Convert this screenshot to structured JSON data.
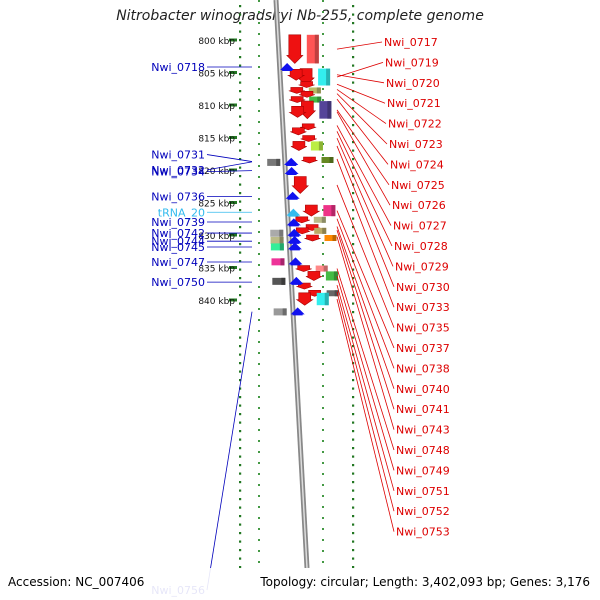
{
  "title": "Nitrobacter winogradskyi Nb-255, complete genome",
  "footer": {
    "accession": "Accession: NC_007406",
    "summary": "Topology: circular; Length: 3,402,093 bp; Genes: 3,176"
  },
  "colors": {
    "forward_label": "#dd0000",
    "reverse_label": "#0000bb",
    "trna_label": "#33bbee",
    "tick": "#227722",
    "backbone": "#999999"
  },
  "ruler": {
    "unit": "kbp",
    "ticks": [
      {
        "label": "800 kbp",
        "kbp": 800
      },
      {
        "label": "805 kbp",
        "kbp": 805
      },
      {
        "label": "810 kbp",
        "kbp": 810
      },
      {
        "label": "815 kbp",
        "kbp": 815
      },
      {
        "label": "820 kbp",
        "kbp": 820
      },
      {
        "label": "825 kbp",
        "kbp": 825
      },
      {
        "label": "830 kbp",
        "kbp": 830
      },
      {
        "label": "835 kbp",
        "kbp": 835
      },
      {
        "label": "840 kbp",
        "kbp": 840
      }
    ]
  },
  "forward_genes": [
    {
      "name": "Nwi_0717",
      "start_kbp": 799.2,
      "end_kbp": 803.6,
      "marker_color": "#ff5555"
    },
    {
      "name": "Nwi_0719",
      "start_kbp": 804.4,
      "end_kbp": 807.0,
      "marker_color": "#33eeee"
    },
    {
      "name": "Nwi_0720",
      "start_kbp": 804.5,
      "end_kbp": 806.2,
      "marker_color": "#ff3333"
    },
    {
      "name": "Nwi_0721",
      "start_kbp": 806.4,
      "end_kbp": 807.2,
      "marker_color": "#ff3333"
    },
    {
      "name": "Nwi_0722",
      "start_kbp": 807.3,
      "end_kbp": 807.9,
      "marker_color": "#bbbb66"
    },
    {
      "name": "Nwi_0723",
      "start_kbp": 807.9,
      "end_kbp": 808.6,
      "marker_color": "#ff3333"
    },
    {
      "name": "Nwi_0724",
      "start_kbp": 808.7,
      "end_kbp": 809.5,
      "marker_color": "#44bb44"
    },
    {
      "name": "Nwi_0725",
      "start_kbp": 809.4,
      "end_kbp": 812.1,
      "marker_color": "#554499"
    },
    {
      "name": "Nwi_0726",
      "start_kbp": 810.2,
      "end_kbp": 811.9,
      "marker_color": "#ff3333"
    },
    {
      "name": "Nwi_0727",
      "start_kbp": 812.9,
      "end_kbp": 813.4,
      "marker_color": "#ff3333"
    },
    {
      "name": "Nwi_0728",
      "start_kbp": 813.5,
      "end_kbp": 814.6,
      "marker_color": "#ff3333"
    },
    {
      "name": "Nwi_0729",
      "start_kbp": 814.7,
      "end_kbp": 815.5,
      "marker_color": "#ff3333"
    },
    {
      "name": "Nwi_0730",
      "start_kbp": 815.6,
      "end_kbp": 817.0,
      "marker_color": "#bbee44"
    },
    {
      "name": "Nwi_0733",
      "start_kbp": 818.0,
      "end_kbp": 818.6,
      "marker_color": "#668822"
    },
    {
      "name": "Nwi_0735",
      "start_kbp": 821.0,
      "end_kbp": 823.6,
      "marker_color": "#ff3333"
    },
    {
      "name": "Nwi_0737",
      "start_kbp": 825.4,
      "end_kbp": 827.1,
      "marker_color": "#ee3388"
    },
    {
      "name": "Nwi_0738",
      "start_kbp": 827.2,
      "end_kbp": 827.8,
      "marker_color": "#bbbb88"
    },
    {
      "name": "Nwi_0740",
      "start_kbp": 828.4,
      "end_kbp": 829.0,
      "marker_color": "#ff3333"
    },
    {
      "name": "Nwi_0741",
      "start_kbp": 828.9,
      "end_kbp": 829.6,
      "marker_color": "#bbaa66"
    },
    {
      "name": "Nwi_0743",
      "start_kbp": 830.0,
      "end_kbp": 830.5,
      "marker_color": "#ff8800"
    },
    {
      "name": "Nwi_0748",
      "start_kbp": 834.7,
      "end_kbp": 835.6,
      "marker_color": "#ff8888"
    },
    {
      "name": "Nwi_0749",
      "start_kbp": 835.6,
      "end_kbp": 837.0,
      "marker_color": "#44bb44"
    },
    {
      "name": "Nwi_0751",
      "start_kbp": 837.4,
      "end_kbp": 838.0,
      "marker_color": "#ff3333"
    },
    {
      "name": "Nwi_0752",
      "start_kbp": 838.5,
      "end_kbp": 839.0,
      "marker_color": "#666666"
    },
    {
      "name": "Nwi_0753",
      "start_kbp": 838.9,
      "end_kbp": 840.8,
      "marker_color": "#33eeee"
    }
  ],
  "reverse_genes": [
    {
      "name": "Nwi_0718",
      "start_kbp": 804.0,
      "end_kbp": 804.3,
      "marker_color": "#2222ee"
    },
    {
      "name": "Nwi_0731",
      "start_kbp": 818.6,
      "end_kbp": 818.8,
      "marker_color": "#777777"
    },
    {
      "name": "Nwi_0732",
      "start_kbp": 818.6,
      "end_kbp": 818.9,
      "marker_color": "#2222ee"
    },
    {
      "name": "Nwi_0734",
      "start_kbp": 820.0,
      "end_kbp": 820.2,
      "marker_color": "#2222ee"
    },
    {
      "name": "Nwi_0736",
      "start_kbp": 823.8,
      "end_kbp": 824.4,
      "marker_color": "#2222ee"
    },
    {
      "name": "tRNA_20",
      "start_kbp": 826.4,
      "end_kbp": 826.6,
      "marker_color": "#33bbee",
      "type": "tRNA"
    },
    {
      "name": "Nwi_0739",
      "start_kbp": 827.9,
      "end_kbp": 828.1,
      "marker_color": "#2222ee"
    },
    {
      "name": "Nwi_0742",
      "start_kbp": 829.5,
      "end_kbp": 829.9,
      "marker_color": "#aaaaaa"
    },
    {
      "name": "Nwi_0744",
      "start_kbp": 830.6,
      "end_kbp": 831.3,
      "marker_color": "#bbbb88"
    },
    {
      "name": "Nwi_0745",
      "start_kbp": 831.6,
      "end_kbp": 832.1,
      "marker_color": "#33ee99"
    },
    {
      "name": "Nwi_0747",
      "start_kbp": 833.9,
      "end_kbp": 834.4,
      "marker_color": "#ee3399"
    },
    {
      "name": "Nwi_0750",
      "start_kbp": 836.9,
      "end_kbp": 837.6,
      "marker_color": "#555555"
    },
    {
      "name": "Nwi_0756",
      "start_kbp": 841.6,
      "end_kbp": 842.0,
      "marker_color": "#999999"
    }
  ]
}
